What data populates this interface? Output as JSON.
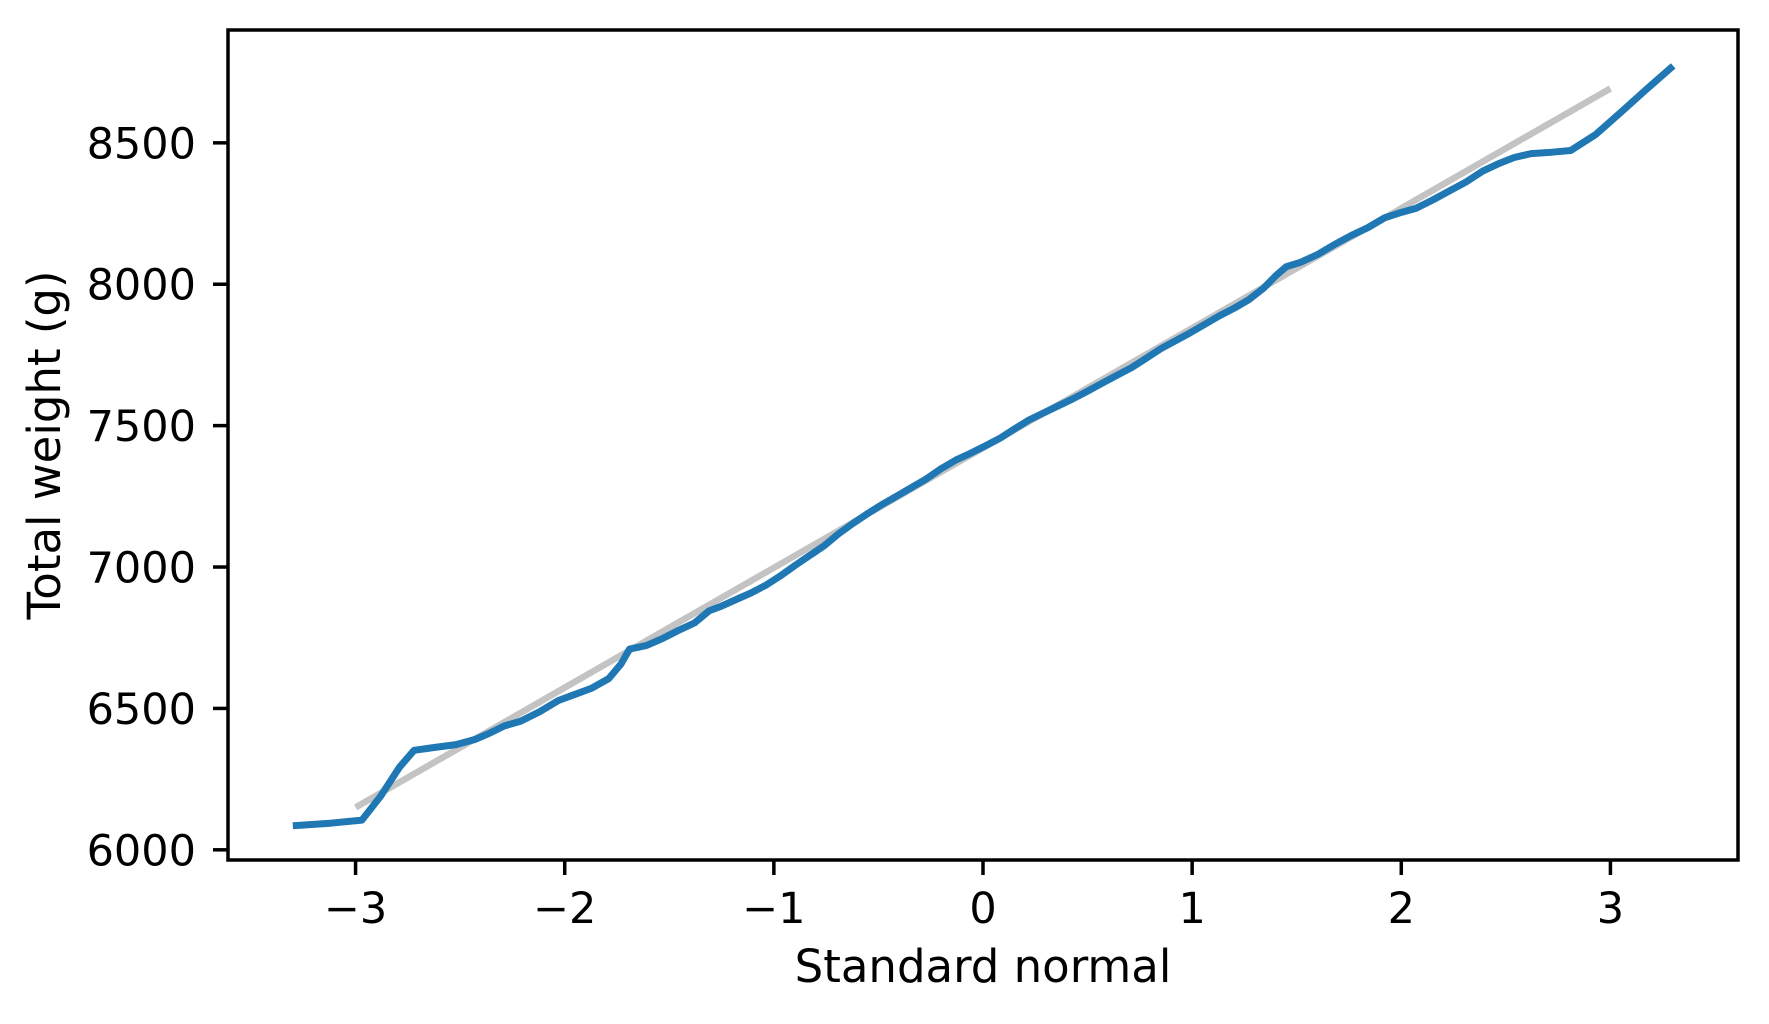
{
  "page": {
    "background": "#ffffff"
  },
  "chart_data": {
    "type": "line",
    "title": "",
    "xlabel": "Standard normal",
    "ylabel": "Total weight (g)",
    "grid": false,
    "legend": "none",
    "axis_color": "#000000",
    "xlim": [
      -3.61,
      3.61
    ],
    "ylim": [
      5964,
      8899
    ],
    "x_ticks": {
      "values": [
        -3,
        -2,
        -1,
        0,
        1,
        2,
        3
      ],
      "labels": [
        "−3",
        "−2",
        "−1",
        "0",
        "1",
        "2",
        "3"
      ]
    },
    "y_ticks": {
      "values": [
        6000,
        6500,
        7000,
        7500,
        8000,
        8500
      ],
      "labels": [
        "6000",
        "6500",
        "7000",
        "7500",
        "8000",
        "8500"
      ]
    },
    "series": [
      {
        "name": "normal-reference-line",
        "color": "#c3c3c3",
        "line_width": 6.5,
        "points": [
          [
            -3.0,
            6150
          ],
          [
            3.0,
            8692
          ]
        ]
      },
      {
        "name": "ordered-sample-quantiles",
        "color": "#1f77b4",
        "line_width": 7,
        "points": [
          [
            -3.3,
            6085
          ],
          [
            -3.12,
            6094
          ],
          [
            -2.97,
            6105
          ],
          [
            -2.88,
            6190
          ],
          [
            -2.79,
            6292
          ],
          [
            -2.72,
            6352
          ],
          [
            -2.62,
            6362
          ],
          [
            -2.52,
            6372
          ],
          [
            -2.43,
            6390
          ],
          [
            -2.36,
            6412
          ],
          [
            -2.29,
            6438
          ],
          [
            -2.21,
            6455
          ],
          [
            -2.12,
            6488
          ],
          [
            -2.03,
            6528
          ],
          [
            -1.95,
            6550
          ],
          [
            -1.87,
            6572
          ],
          [
            -1.79,
            6605
          ],
          [
            -1.73,
            6658
          ],
          [
            -1.69,
            6710
          ],
          [
            -1.61,
            6722
          ],
          [
            -1.53,
            6748
          ],
          [
            -1.45,
            6778
          ],
          [
            -1.38,
            6802
          ],
          [
            -1.31,
            6845
          ],
          [
            -1.25,
            6862
          ],
          [
            -1.18,
            6885
          ],
          [
            -1.11,
            6908
          ],
          [
            -1.04,
            6935
          ],
          [
            -0.97,
            6968
          ],
          [
            -0.9,
            7005
          ],
          [
            -0.83,
            7040
          ],
          [
            -0.76,
            7075
          ],
          [
            -0.69,
            7118
          ],
          [
            -0.62,
            7155
          ],
          [
            -0.55,
            7190
          ],
          [
            -0.48,
            7222
          ],
          [
            -0.41,
            7252
          ],
          [
            -0.34,
            7282
          ],
          [
            -0.27,
            7312
          ],
          [
            -0.2,
            7348
          ],
          [
            -0.13,
            7378
          ],
          [
            -0.06,
            7402
          ],
          [
            0.01,
            7428
          ],
          [
            0.08,
            7455
          ],
          [
            0.15,
            7488
          ],
          [
            0.22,
            7520
          ],
          [
            0.29,
            7545
          ],
          [
            0.36,
            7570
          ],
          [
            0.43,
            7595
          ],
          [
            0.5,
            7622
          ],
          [
            0.57,
            7650
          ],
          [
            0.64,
            7678
          ],
          [
            0.71,
            7705
          ],
          [
            0.78,
            7738
          ],
          [
            0.85,
            7772
          ],
          [
            0.92,
            7800
          ],
          [
            0.99,
            7828
          ],
          [
            1.06,
            7858
          ],
          [
            1.13,
            7888
          ],
          [
            1.2,
            7915
          ],
          [
            1.27,
            7945
          ],
          [
            1.34,
            7985
          ],
          [
            1.4,
            8030
          ],
          [
            1.45,
            8062
          ],
          [
            1.52,
            8078
          ],
          [
            1.6,
            8105
          ],
          [
            1.68,
            8140
          ],
          [
            1.76,
            8172
          ],
          [
            1.84,
            8200
          ],
          [
            1.92,
            8235
          ],
          [
            1.99,
            8252
          ],
          [
            2.07,
            8268
          ],
          [
            2.15,
            8298
          ],
          [
            2.23,
            8330
          ],
          [
            2.31,
            8362
          ],
          [
            2.39,
            8400
          ],
          [
            2.47,
            8428
          ],
          [
            2.54,
            8448
          ],
          [
            2.62,
            8462
          ],
          [
            2.72,
            8467
          ],
          [
            2.81,
            8473
          ],
          [
            2.93,
            8530
          ],
          [
            3.05,
            8608
          ],
          [
            3.17,
            8688
          ],
          [
            3.3,
            8772
          ]
        ]
      }
    ]
  }
}
